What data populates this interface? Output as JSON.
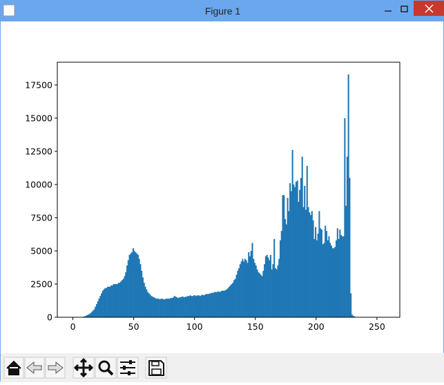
{
  "window_title": "Figure 1",
  "chart_data": {
    "type": "histogram",
    "color": "#1f77b4",
    "xlim": [
      -12.8,
      268.8
    ],
    "ylim": [
      0,
      19215
    ],
    "xticks": [
      0,
      50,
      100,
      150,
      200,
      250
    ],
    "yticks": [
      0,
      2500,
      5000,
      7500,
      10000,
      12500,
      15000,
      17500
    ],
    "bins": [
      0,
      1,
      2,
      3,
      4,
      5,
      6,
      7,
      8,
      9,
      10,
      11,
      12,
      13,
      14,
      15,
      16,
      17,
      18,
      19,
      20,
      21,
      22,
      23,
      24,
      25,
      26,
      27,
      28,
      29,
      30,
      31,
      32,
      33,
      34,
      35,
      36,
      37,
      38,
      39,
      40,
      41,
      42,
      43,
      44,
      45,
      46,
      47,
      48,
      49,
      50,
      51,
      52,
      53,
      54,
      55,
      56,
      57,
      58,
      59,
      60,
      61,
      62,
      63,
      64,
      65,
      66,
      67,
      68,
      69,
      70,
      71,
      72,
      73,
      74,
      75,
      76,
      77,
      78,
      79,
      80,
      81,
      82,
      83,
      84,
      85,
      86,
      87,
      88,
      89,
      90,
      91,
      92,
      93,
      94,
      95,
      96,
      97,
      98,
      99,
      100,
      101,
      102,
      103,
      104,
      105,
      106,
      107,
      108,
      109,
      110,
      111,
      112,
      113,
      114,
      115,
      116,
      117,
      118,
      119,
      120,
      121,
      122,
      123,
      124,
      125,
      126,
      127,
      128,
      129,
      130,
      131,
      132,
      133,
      134,
      135,
      136,
      137,
      138,
      139,
      140,
      141,
      142,
      143,
      144,
      145,
      146,
      147,
      148,
      149,
      150,
      151,
      152,
      153,
      154,
      155,
      156,
      157,
      158,
      159,
      160,
      161,
      162,
      163,
      164,
      165,
      166,
      167,
      168,
      169,
      170,
      171,
      172,
      173,
      174,
      175,
      176,
      177,
      178,
      179,
      180,
      181,
      182,
      183,
      184,
      185,
      186,
      187,
      188,
      189,
      190,
      191,
      192,
      193,
      194,
      195,
      196,
      197,
      198,
      199,
      200,
      201,
      202,
      203,
      204,
      205,
      206,
      207,
      208,
      209,
      210,
      211,
      212,
      213,
      214,
      215,
      216,
      217,
      218,
      219,
      220,
      221,
      222,
      223,
      224,
      225,
      226,
      227,
      228,
      229,
      230,
      231,
      232,
      233,
      234,
      235,
      236,
      237,
      238,
      239,
      240,
      241,
      242,
      243,
      244,
      245,
      246,
      247,
      248,
      249,
      250,
      251,
      252,
      253,
      254,
      255,
      256
    ],
    "values": [
      0,
      0,
      0,
      0,
      0,
      0,
      10,
      20,
      40,
      60,
      100,
      150,
      200,
      250,
      300,
      400,
      500,
      600,
      800,
      1000,
      1200,
      1400,
      1600,
      1800,
      2000,
      2100,
      2200,
      2200,
      2300,
      2300,
      2300,
      2400,
      2400,
      2500,
      2500,
      2500,
      2500,
      2600,
      2600,
      2700,
      2800,
      2900,
      3100,
      3400,
      3900,
      4300,
      4700,
      4800,
      4900,
      5200,
      5000,
      4900,
      4800,
      4700,
      4400,
      4000,
      3500,
      3000,
      2600,
      2300,
      2100,
      1900,
      1800,
      1700,
      1600,
      1550,
      1500,
      1450,
      1400,
      1400,
      1400,
      1350,
      1400,
      1400,
      1350,
      1350,
      1400,
      1400,
      1400,
      1400,
      1450,
      1450,
      1500,
      1600,
      1550,
      1500,
      1450,
      1500,
      1500,
      1550,
      1550,
      1500,
      1550,
      1550,
      1600,
      1600,
      1650,
      1600,
      1600,
      1650,
      1650,
      1600,
      1650,
      1650,
      1600,
      1650,
      1700,
      1650,
      1700,
      1750,
      1750,
      1750,
      1800,
      1800,
      1850,
      1850,
      1900,
      1900,
      1900,
      1950,
      1900,
      1950,
      2000,
      2000,
      2000,
      2050,
      2100,
      2200,
      2300,
      2400,
      2500,
      2600,
      2800,
      2900,
      3200,
      3500,
      3700,
      4000,
      4200,
      4400,
      4200,
      4400,
      4300,
      4100,
      4900,
      4600,
      5000,
      5600,
      4400,
      4100,
      3900,
      3600,
      3400,
      3300,
      3200,
      3100,
      3500,
      4000,
      4600,
      4700,
      4500,
      4300,
      4700,
      3600,
      4000,
      5900,
      3700,
      3600,
      3900,
      4400,
      5800,
      6500,
      9200,
      9200,
      7400,
      7000,
      9000,
      8000,
      10100,
      9500,
      12600,
      10000,
      9800,
      10200,
      10300,
      8700,
      9600,
      10500,
      12100,
      8300,
      9900,
      8100,
      11400,
      8300,
      7900,
      7700,
      8000,
      7300,
      5900,
      6800,
      5800,
      6300,
      8000,
      6700,
      6600,
      5500,
      5600,
      6900,
      6500,
      5800,
      6100,
      5600,
      5400,
      5200,
      5200,
      5300,
      5800,
      6700,
      5900,
      6600,
      6200,
      6100,
      6100,
      15000,
      8400,
      12100,
      18300,
      10500,
      1800,
      200,
      100,
      50,
      20,
      10,
      0,
      0,
      0,
      0,
      0,
      0,
      0,
      0,
      0,
      0,
      0,
      0,
      0,
      0,
      0,
      0,
      0,
      0,
      0,
      0,
      0,
      0
    ]
  }
}
